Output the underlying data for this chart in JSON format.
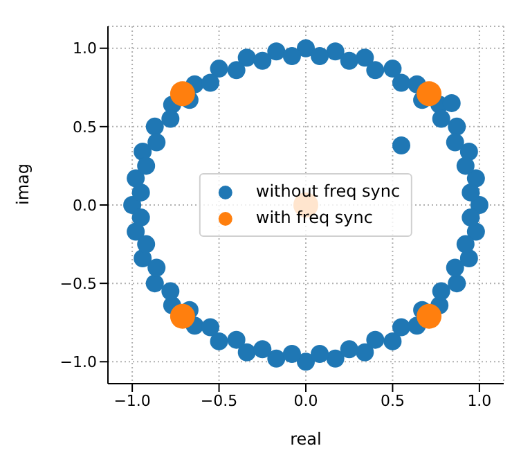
{
  "chart_data": {
    "type": "scatter",
    "xlabel": "real",
    "ylabel": "imag",
    "xlim": [
      -1.14,
      1.14
    ],
    "ylim": [
      -1.14,
      1.14
    ],
    "xticks": [
      {
        "value": -1,
        "label": "−1.0"
      },
      {
        "value": -0.5,
        "label": "−0.5"
      },
      {
        "value": 0,
        "label": "0.0"
      },
      {
        "value": 0.5,
        "label": "0.5"
      },
      {
        "value": 1,
        "label": "1.0"
      }
    ],
    "yticks": [
      {
        "value": -1,
        "label": "−1.0"
      },
      {
        "value": -0.5,
        "label": "−0.5"
      },
      {
        "value": 0,
        "label": "0.0"
      },
      {
        "value": 0.5,
        "label": "0.5"
      },
      {
        "value": 1,
        "label": "1.0"
      }
    ],
    "grid": true,
    "legend": "center",
    "marker": "circle",
    "series": [
      {
        "name": "without freq sync",
        "color": "#1f77b4",
        "x": [
          1,
          0.98,
          0.94,
          0.87,
          0.77,
          0.64,
          0.5,
          0.34,
          0.17,
          0,
          -0.17,
          -0.34,
          -0.5,
          -0.64,
          -0.77,
          -0.87,
          -0.94,
          -0.98,
          -1,
          -0.98,
          -0.94,
          -0.87,
          -0.77,
          -0.64,
          -0.5,
          -0.34,
          -0.17,
          0,
          0.17,
          0.34,
          0.5,
          0.64,
          0.77,
          0.87,
          0.94,
          0.98,
          0.95,
          0.92,
          0.86,
          0.78,
          0.67,
          0.55,
          0.4,
          0.25,
          0.08,
          -0.08,
          -0.25,
          -0.4,
          -0.55,
          -0.67,
          -0.78,
          -0.86,
          -0.92,
          -0.95,
          -0.95,
          -0.92,
          -0.86,
          -0.78,
          -0.67,
          -0.55,
          -0.4,
          -0.25,
          -0.08,
          0.08,
          0.25,
          0.4,
          0.55,
          0.67,
          0.78,
          0.86,
          0.92,
          0.95,
          0.55,
          0.84
        ],
        "values": [
          0,
          0.17,
          0.34,
          0.5,
          0.64,
          0.77,
          0.87,
          0.94,
          0.98,
          1,
          0.98,
          0.94,
          0.87,
          0.77,
          0.64,
          0.5,
          0.34,
          0.17,
          0,
          -0.17,
          -0.34,
          -0.5,
          -0.64,
          -0.77,
          -0.87,
          -0.94,
          -0.98,
          -1,
          -0.98,
          -0.94,
          -0.87,
          -0.77,
          -0.64,
          -0.5,
          -0.34,
          -0.17,
          0.08,
          0.25,
          0.4,
          0.55,
          0.67,
          0.78,
          0.86,
          0.92,
          0.95,
          0.95,
          0.92,
          0.86,
          0.78,
          0.67,
          0.55,
          0.4,
          0.25,
          0.08,
          -0.08,
          -0.25,
          -0.4,
          -0.55,
          -0.67,
          -0.78,
          -0.86,
          -0.92,
          -0.95,
          -0.95,
          -0.92,
          -0.86,
          -0.78,
          -0.67,
          -0.55,
          -0.4,
          -0.25,
          -0.08,
          0.38,
          0.65
        ]
      },
      {
        "name": "with freq sync",
        "color": "#ff7f0e",
        "x": [
          0.71,
          -0.71,
          -0.71,
          0.71,
          0
        ],
        "values": [
          0.71,
          0.71,
          -0.71,
          -0.71,
          0
        ]
      }
    ]
  }
}
